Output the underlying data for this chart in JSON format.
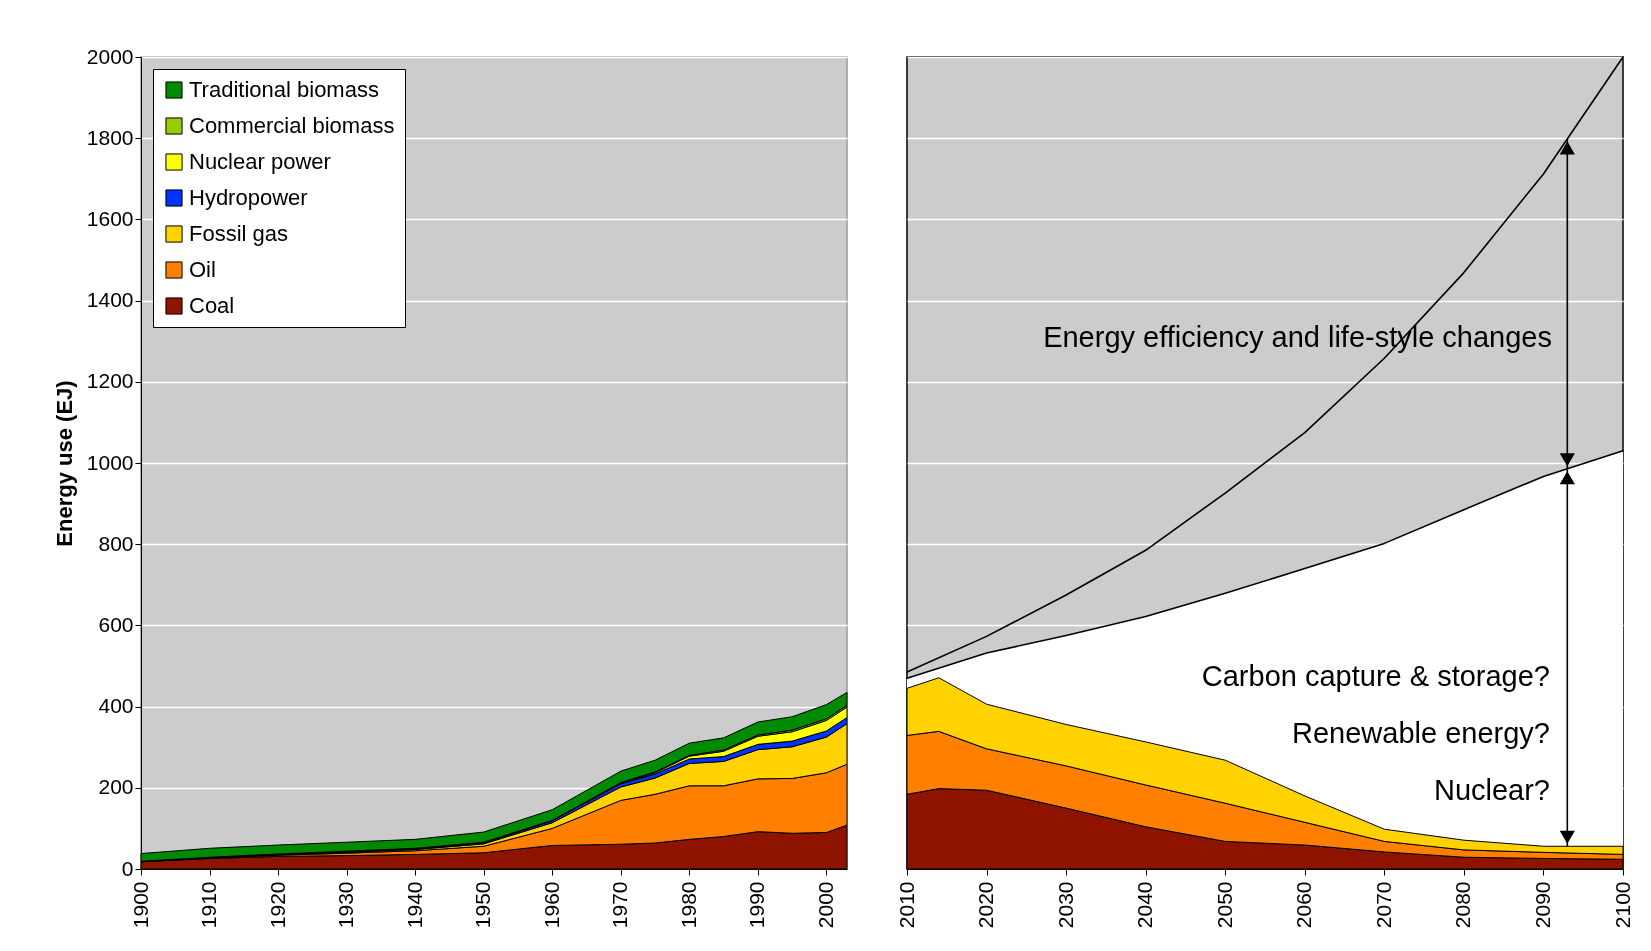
{
  "chart_data": [
    {
      "type": "area",
      "stacked": true,
      "ylabel": "Energy use (EJ)",
      "x": [
        1900,
        1910,
        1920,
        1930,
        1940,
        1950,
        1960,
        1970,
        1975,
        1980,
        1985,
        1990,
        1995,
        2000,
        2003
      ],
      "xlim": [
        1900,
        2003
      ],
      "xticks": [
        1900,
        1910,
        1920,
        1930,
        1940,
        1950,
        1960,
        1970,
        1980,
        1990,
        2000
      ],
      "ylim": [
        0,
        2000
      ],
      "yticks": [
        0,
        200,
        400,
        600,
        800,
        1000,
        1200,
        1400,
        1600,
        1800,
        2000
      ],
      "grid": "y",
      "legend": "top left",
      "series": [
        {
          "name": "Coal",
          "color": "#8f1400",
          "values": [
            18,
            26,
            31,
            33,
            36,
            40,
            58,
            61,
            64,
            73,
            80,
            92,
            88,
            90,
            108
          ]
        },
        {
          "name": "Oil",
          "color": "#ff8000",
          "values": [
            0,
            1,
            3,
            6,
            9,
            16,
            42,
            108,
            120,
            132,
            125,
            130,
            135,
            147,
            150
          ]
        },
        {
          "name": "Fossil gas",
          "color": "#ffd200",
          "values": [
            0,
            0,
            1,
            2,
            3,
            6,
            14,
            33,
            40,
            55,
            60,
            72,
            78,
            88,
            100
          ]
        },
        {
          "name": "Hydropower",
          "color": "#0033ff",
          "values": [
            0,
            1,
            1,
            2,
            2,
            3,
            5,
            8,
            10,
            11,
            12,
            13,
            14,
            15,
            15
          ]
        },
        {
          "name": "Nuclear power",
          "color": "#ffff00",
          "values": [
            0,
            0,
            0,
            0,
            0,
            0,
            0,
            1,
            3,
            7,
            13,
            20,
            23,
            26,
            26
          ]
        },
        {
          "name": "Commercial biomass",
          "color": "#99cc00",
          "values": [
            1,
            1,
            1,
            1,
            1,
            1,
            1,
            2,
            2,
            2,
            3,
            3,
            4,
            4,
            4
          ]
        },
        {
          "name": "Traditional biomass",
          "color": "#008a00",
          "values": [
            19,
            22,
            22,
            22,
            22,
            25,
            26,
            28,
            29,
            30,
            30,
            32,
            33,
            35,
            32
          ]
        }
      ]
    },
    {
      "type": "area",
      "stacked": true,
      "x": [
        2010,
        2014,
        2020,
        2030,
        2040,
        2050,
        2060,
        2070,
        2080,
        2090,
        2100
      ],
      "xlim": [
        2010,
        2100
      ],
      "xticks": [
        2010,
        2020,
        2030,
        2040,
        2050,
        2060,
        2070,
        2080,
        2090,
        2100
      ],
      "ylim": [
        0,
        2000
      ],
      "yticks": [
        0,
        200,
        400,
        600,
        800,
        1000,
        1200,
        1400,
        1600,
        1800,
        2000
      ],
      "grid": "y",
      "tick_labels": "x",
      "annotations": [
        "Energy efficiency and life-style changes",
        "Carbon capture & storage?",
        "Renewable energy?",
        "Nuclear?"
      ],
      "series": [
        {
          "color": "#8f1400",
          "values": [
            184,
            198,
            194,
            150,
            104,
            68,
            59,
            42,
            29,
            26,
            24
          ]
        },
        {
          "color": "#ff8000",
          "values": [
            145,
            141,
            102,
            104,
            103,
            94,
            56,
            26,
            18,
            15,
            12
          ]
        },
        {
          "color": "#ffd200",
          "values": [
            116,
            132,
            110,
            102,
            106,
            106,
            65,
            30,
            24,
            15,
            20
          ]
        },
        {
          "type": "line",
          "color": "#000000",
          "x": [
            2010,
            2020,
            2030,
            2040,
            2050,
            2060,
            2070,
            2080,
            2090,
            2100
          ],
          "values": [
            470,
            532,
            575,
            622,
            679,
            740,
            802,
            885,
            967,
            1030
          ],
          "lower": [
            445,
            406,
            356,
            313,
            268,
            180,
            98,
            71,
            56,
            56
          ],
          "upper": [
            470,
            532,
            575,
            622,
            679,
            740,
            802,
            885,
            967,
            1030
          ]
        },
        {
          "type": "line",
          "color": "#000000",
          "x": [
            2010,
            2020,
            2030,
            2040,
            2050,
            2060,
            2070,
            2080,
            2090,
            2100
          ],
          "values": [
            485,
            573,
            675,
            785,
            926,
            1075,
            1258,
            1469,
            1712,
            2000
          ]
        }
      ]
    }
  ]
}
